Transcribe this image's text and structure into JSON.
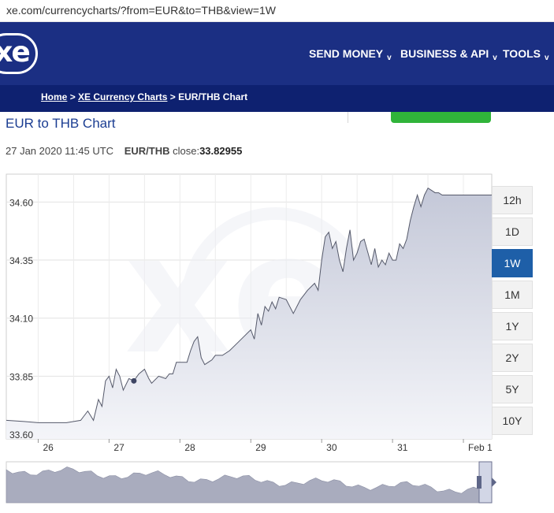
{
  "browser": {
    "url": "xe.com/currencycharts/?from=EUR&to=THB&view=1W"
  },
  "nav": {
    "logo_text": "xe",
    "items": [
      "SEND MONEY",
      "BUSINESS & API",
      "TOOLS"
    ],
    "chevron": "v"
  },
  "breadcrumb": {
    "home": "Home",
    "sep1": ">",
    "charts": "XE Currency Charts",
    "sep2": ">",
    "current": "EUR/THB Chart"
  },
  "chart_info": {
    "title": "EUR to THB Chart",
    "timestamp": "27 Jan 2020 11:45 UTC",
    "pair": "EUR/THB",
    "close_label": "close:",
    "close_value": "33.82955"
  },
  "periods": {
    "items": [
      "12h",
      "1D",
      "1W",
      "1M",
      "1Y",
      "2Y",
      "5Y",
      "10Y"
    ],
    "selected": "1W"
  },
  "colors": {
    "nav_bg": "#1b2f83",
    "crumb_bg": "#0e2170",
    "accent": "#1e5fa8",
    "green": "#30b43a"
  },
  "chart_data": {
    "type": "area",
    "title": "EUR to THB Chart",
    "xlabel": "",
    "ylabel": "",
    "ylim": [
      33.58,
      34.72
    ],
    "yticks": [
      33.6,
      33.85,
      34.1,
      34.35,
      34.6
    ],
    "ytick_labels": [
      "33.60",
      "33.85",
      "34.10",
      "34.35",
      "34.60"
    ],
    "xticks": [
      26,
      27,
      28,
      29,
      30,
      31,
      32
    ],
    "xtick_labels": [
      "26",
      "27",
      "28",
      "29",
      "30",
      "31",
      "Feb 1"
    ],
    "xlim": [
      25.55,
      32.4
    ],
    "grid": true,
    "marker": {
      "x": 27.35,
      "y": 33.83
    },
    "series": [
      {
        "x": [
          25.55,
          25.8,
          26.0,
          26.2,
          26.4,
          26.5,
          26.6,
          26.65,
          26.7,
          26.78,
          26.85,
          26.9,
          26.95,
          27.0,
          27.05,
          27.1,
          27.15,
          27.2,
          27.28,
          27.35,
          27.42,
          27.5,
          27.56,
          27.6,
          27.7,
          27.8,
          27.85,
          27.9,
          27.95,
          28.0,
          28.1,
          28.15,
          28.2,
          28.25,
          28.3,
          28.35,
          28.4,
          28.45,
          28.5,
          28.6,
          28.7,
          28.8,
          28.9,
          29.0,
          29.05,
          29.1,
          29.15,
          29.2,
          29.25,
          29.3,
          29.35,
          29.4,
          29.5,
          29.6,
          29.7,
          29.8,
          29.9,
          29.95,
          30.0,
          30.05,
          30.1,
          30.15,
          30.2,
          30.25,
          30.3,
          30.35,
          30.4,
          30.45,
          30.5,
          30.55,
          30.6,
          30.7,
          30.75,
          30.8,
          30.85,
          30.9,
          30.95,
          31.0,
          31.05,
          31.1,
          31.15,
          31.2,
          31.25,
          31.3,
          31.35,
          31.4,
          31.45,
          31.5,
          31.55,
          31.6,
          31.65,
          31.7,
          31.75,
          31.8,
          31.9,
          32.0,
          32.1,
          32.2,
          32.4
        ],
        "y": [
          33.66,
          33.655,
          33.65,
          33.65,
          33.65,
          33.655,
          33.66,
          33.68,
          33.7,
          33.66,
          33.75,
          33.72,
          33.83,
          33.85,
          33.8,
          33.88,
          33.85,
          33.79,
          33.84,
          33.83,
          33.86,
          33.88,
          33.84,
          33.82,
          33.85,
          33.84,
          33.86,
          33.86,
          33.91,
          33.91,
          33.91,
          33.96,
          34.0,
          34.02,
          33.93,
          33.9,
          33.91,
          33.92,
          33.94,
          33.94,
          33.96,
          33.99,
          34.02,
          34.05,
          34.01,
          34.12,
          34.07,
          34.15,
          34.13,
          34.17,
          34.14,
          34.19,
          34.18,
          34.12,
          34.18,
          34.22,
          34.25,
          34.22,
          34.35,
          34.45,
          34.47,
          34.4,
          34.43,
          34.35,
          34.3,
          34.4,
          34.48,
          34.35,
          34.38,
          34.43,
          34.44,
          34.33,
          34.4,
          34.32,
          34.35,
          34.33,
          34.38,
          34.35,
          34.35,
          34.42,
          34.4,
          34.44,
          34.52,
          34.58,
          34.63,
          34.58,
          34.63,
          34.66,
          34.65,
          34.64,
          34.64,
          34.63,
          34.63,
          34.63,
          34.63,
          34.63,
          34.63,
          34.63,
          34.63
        ]
      }
    ]
  }
}
